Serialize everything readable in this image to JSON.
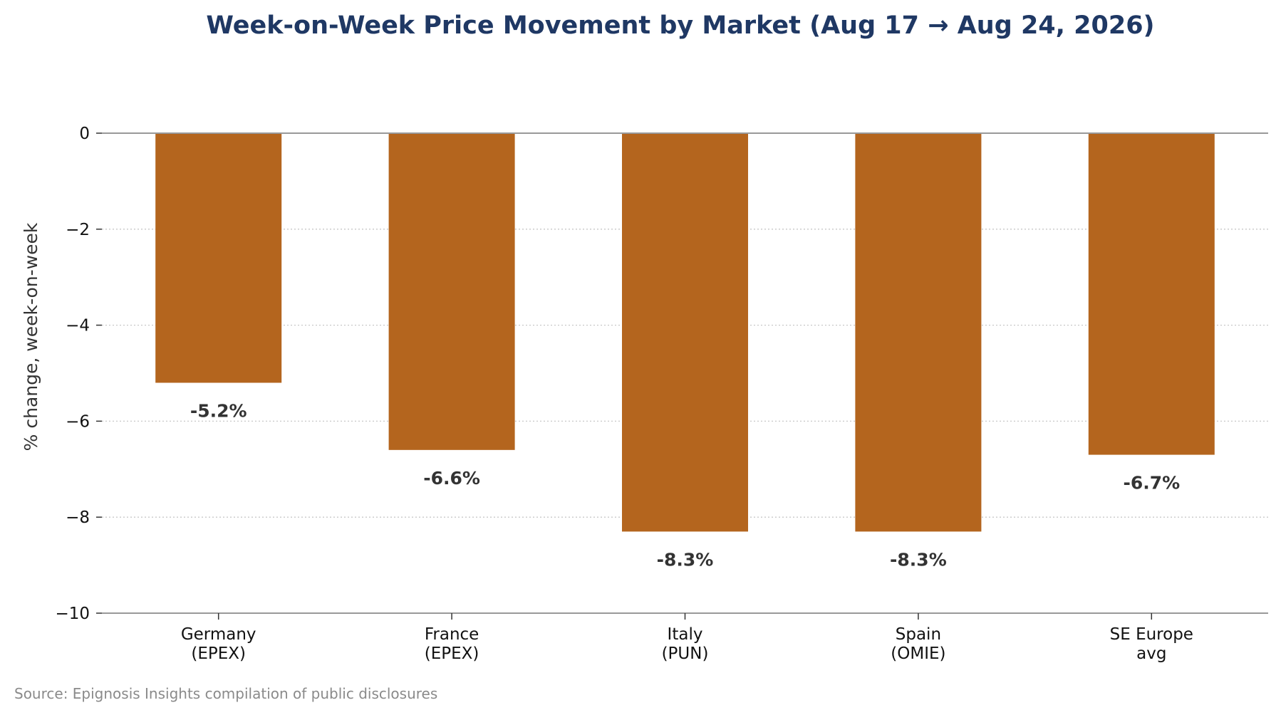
{
  "chart_data": {
    "type": "bar",
    "title": "Week-on-Week Price Movement by Market (Aug 17 → Aug 24, 2026)",
    "ylabel": "% change, week-on-week",
    "xlabel": "",
    "categories": [
      "Germany\n(EPEX)",
      "France\n(EPEX)",
      "Italy\n(PUN)",
      "Spain\n(OMIE)",
      "SE Europe\navg"
    ],
    "values": [
      -5.2,
      -6.6,
      -8.3,
      -8.3,
      -6.7
    ],
    "data_labels": [
      "-5.2%",
      "-6.6%",
      "-8.3%",
      "-8.3%",
      "-6.7%"
    ],
    "ylim": [
      -10,
      0
    ],
    "yticks": [
      0,
      -2,
      -4,
      -6,
      -8,
      -10
    ],
    "ytick_labels": [
      "0",
      "−2",
      "−4",
      "−6",
      "−8",
      "−10"
    ],
    "grid": "y dotted",
    "legend": "none",
    "bar_color": "#b4651e",
    "source": "Source: Epignosis Insights compilation of public disclosures"
  }
}
